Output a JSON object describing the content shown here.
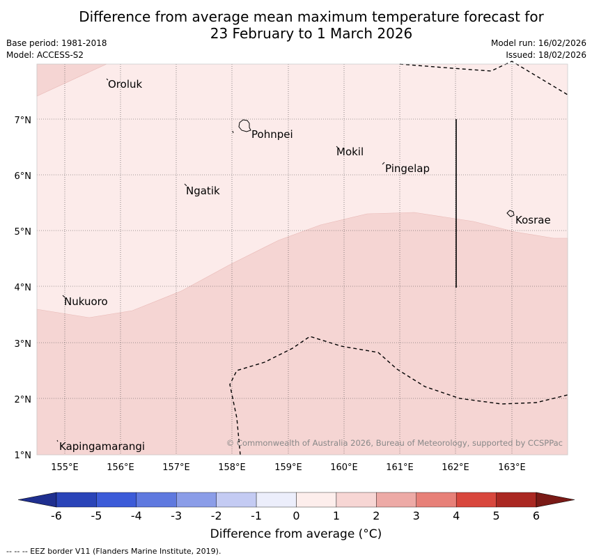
{
  "title_line1": "Difference from average mean maximum temperature forecast for",
  "title_line2": "23 February to 1 March 2026",
  "base_period": "Base period: 1981-2018",
  "model": "Model: ACCESS-S2",
  "model_run": "Model run: 16/02/2026",
  "issued": "Issued: 18/02/2026",
  "copyright": "© Commonwealth of Australia 2026, Bureau of Meteorology, supported by CCSPPac",
  "lon_ticks": [
    "155°E",
    "156°E",
    "157°E",
    "158°E",
    "159°E",
    "160°E",
    "161°E",
    "162°E",
    "163°E"
  ],
  "lat_ticks": [
    "1°N",
    "2°N",
    "3°N",
    "4°N",
    "5°N",
    "6°N",
    "7°N"
  ],
  "places": [
    {
      "name": "Oroluk"
    },
    {
      "name": "Pohnpei"
    },
    {
      "name": "Mokil"
    },
    {
      "name": "Pingelap"
    },
    {
      "name": "Ngatik"
    },
    {
      "name": "Kosrae"
    },
    {
      "name": "Nukuoro"
    },
    {
      "name": "Kapingamarangi"
    }
  ],
  "colorbar": {
    "label": "Difference from average (°C)",
    "ticks": [
      "-6",
      "-5",
      "-4",
      "-3",
      "-2",
      "-1",
      "0",
      "1",
      "2",
      "3",
      "4",
      "5",
      "6"
    ],
    "colors": [
      "#1f2f8f",
      "#2a44b8",
      "#3c5bd8",
      "#5f79df",
      "#8b9de8",
      "#c4cbf3",
      "#eceefb",
      "#fdeeec",
      "#f7d6d4",
      "#edaaa6",
      "#e78078",
      "#d8473d",
      "#aa2822",
      "#7a1a16"
    ],
    "bins": [
      "-6 to -5",
      "-5 to -4",
      "-4 to -3",
      "-3 to -2",
      "-2 to -1",
      "-1 to 0",
      "0 to 1",
      "1 to 2",
      "2 to 3",
      "3 to 4",
      "4 to 5",
      "5 to 6"
    ]
  },
  "footnote": "--  --  -- EEZ border V11 (Flanders Marine Institute, 2019).",
  "colors": {
    "anomaly_0_1": "#fcebea",
    "anomaly_1_2": "#f5d5d3"
  }
}
